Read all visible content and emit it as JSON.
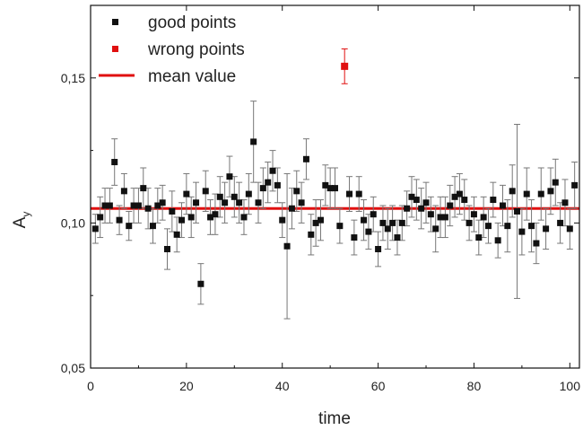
{
  "chart_data": {
    "type": "scatter",
    "xlabel": "time",
    "ylabel_main": "A",
    "ylabel_sub": "y",
    "xlim": [
      0,
      102
    ],
    "ylim": [
      0.05,
      0.175
    ],
    "x_ticks": [
      0,
      20,
      40,
      60,
      80,
      100
    ],
    "x_tick_labels": [
      "0",
      "20",
      "40",
      "60",
      "80",
      "100"
    ],
    "y_ticks": [
      0.05,
      0.1,
      0.15
    ],
    "y_tick_labels": [
      "0,05",
      "0,10",
      "0,15"
    ],
    "legend_position": "top-left",
    "colors": {
      "good": "#111111",
      "wrong": "#e01010",
      "mean": "#e01010",
      "error": "#777777"
    },
    "mean_value": 0.105,
    "series": [
      {
        "name": "good points",
        "marker": "square",
        "x": [
          1,
          2,
          3,
          4,
          5,
          6,
          7,
          8,
          9,
          10,
          11,
          12,
          13,
          14,
          15,
          16,
          17,
          18,
          19,
          20,
          21,
          22,
          23,
          24,
          25,
          26,
          27,
          28,
          29,
          30,
          31,
          32,
          33,
          34,
          35,
          36,
          37,
          38,
          39,
          40,
          41,
          42,
          43,
          44,
          45,
          46,
          47,
          48,
          49,
          50,
          51,
          52,
          54,
          55,
          56,
          57,
          58,
          59,
          60,
          61,
          62,
          63,
          64,
          65,
          66,
          67,
          68,
          69,
          70,
          71,
          72,
          73,
          74,
          75,
          76,
          77,
          78,
          79,
          80,
          81,
          82,
          83,
          84,
          85,
          86,
          87,
          88,
          89,
          90,
          91,
          92,
          93,
          94,
          95,
          96,
          97,
          98,
          99,
          100,
          101
        ],
        "y": [
          0.098,
          0.102,
          0.106,
          0.106,
          0.121,
          0.101,
          0.111,
          0.099,
          0.106,
          0.106,
          0.112,
          0.105,
          0.099,
          0.106,
          0.107,
          0.091,
          0.104,
          0.096,
          0.101,
          0.11,
          0.102,
          0.107,
          0.079,
          0.111,
          0.102,
          0.103,
          0.109,
          0.107,
          0.116,
          0.109,
          0.107,
          0.102,
          0.11,
          0.128,
          0.107,
          0.112,
          0.114,
          0.118,
          0.113,
          0.101,
          0.092,
          0.105,
          0.111,
          0.107,
          0.122,
          0.096,
          0.1,
          0.101,
          0.113,
          0.112,
          0.112,
          0.099,
          0.11,
          0.095,
          0.11,
          0.101,
          0.097,
          0.103,
          0.091,
          0.1,
          0.098,
          0.1,
          0.095,
          0.1,
          0.105,
          0.109,
          0.108,
          0.105,
          0.107,
          0.103,
          0.098,
          0.102,
          0.102,
          0.106,
          0.109,
          0.11,
          0.108,
          0.1,
          0.103,
          0.095,
          0.102,
          0.099,
          0.108,
          0.094,
          0.106,
          0.099,
          0.111,
          0.104,
          0.097,
          0.11,
          0.099,
          0.093,
          0.11,
          0.098,
          0.111,
          0.114,
          0.1,
          0.107,
          0.098,
          0.113
        ],
        "err": [
          0.005,
          0.007,
          0.006,
          0.006,
          0.008,
          0.005,
          0.006,
          0.005,
          0.006,
          0.006,
          0.007,
          0.007,
          0.006,
          0.006,
          0.006,
          0.007,
          0.007,
          0.006,
          0.006,
          0.007,
          0.007,
          0.007,
          0.007,
          0.007,
          0.006,
          0.007,
          0.007,
          0.007,
          0.007,
          0.007,
          0.007,
          0.006,
          0.007,
          0.014,
          0.007,
          0.007,
          0.007,
          0.007,
          0.006,
          0.006,
          0.025,
          0.007,
          0.007,
          0.007,
          0.007,
          0.007,
          0.008,
          0.007,
          0.007,
          0.007,
          0.007,
          0.006,
          0.006,
          0.006,
          0.006,
          0.007,
          0.006,
          0.006,
          0.006,
          0.006,
          0.007,
          0.006,
          0.006,
          0.006,
          0.006,
          0.007,
          0.007,
          0.007,
          0.007,
          0.006,
          0.008,
          0.007,
          0.007,
          0.007,
          0.007,
          0.007,
          0.007,
          0.006,
          0.006,
          0.006,
          0.007,
          0.006,
          0.006,
          0.006,
          0.007,
          0.009,
          0.009,
          0.03,
          0.008,
          0.009,
          0.009,
          0.007,
          0.009,
          0.007,
          0.008,
          0.008,
          0.007,
          0.008,
          0.007,
          0.008
        ]
      },
      {
        "name": "wrong points",
        "marker": "square",
        "x": [
          53
        ],
        "y": [
          0.154
        ],
        "err": [
          0.006
        ]
      }
    ],
    "legend": [
      {
        "label": "good points",
        "kind": "square",
        "color": "#111111"
      },
      {
        "label": "wrong points",
        "kind": "square",
        "color": "#e01010"
      },
      {
        "label": "mean value",
        "kind": "line",
        "color": "#e01010"
      }
    ]
  }
}
